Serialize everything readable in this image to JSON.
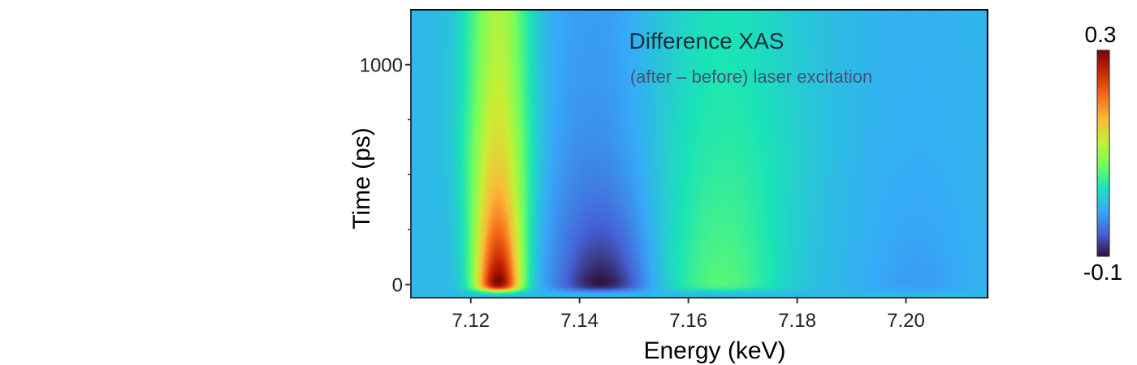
{
  "chart_data": {
    "type": "heatmap",
    "title": "Difference XAS",
    "subtitle": "(after – before) laser excitation",
    "xlabel": "Energy (keV)",
    "ylabel": "Time (ps)",
    "xlim": [
      7.109,
      7.215
    ],
    "ylim": [
      -60,
      1250
    ],
    "x_ticks": [
      7.12,
      7.14,
      7.16,
      7.18,
      7.2
    ],
    "x_tick_labels": [
      "7.12",
      "7.14",
      "7.16",
      "7.18",
      "7.20"
    ],
    "y_ticks": [
      0,
      1000
    ],
    "y_tick_labels": [
      "0",
      "1000"
    ],
    "y_minor_ticks": [
      250,
      500,
      750
    ],
    "colorbar": {
      "min": -0.1,
      "max": 0.3,
      "min_label": "-0.1",
      "max_label": "0.3",
      "colormap": "turbo",
      "stops": [
        "#30123b",
        "#4662d7",
        "#36aaf9",
        "#1ae4b6",
        "#72fe5e",
        "#c8ef34",
        "#faba39",
        "#f66b19",
        "#ca2a04",
        "#7a0403"
      ]
    },
    "background_value": 0.0,
    "features": [
      {
        "name": "pre-edge positive peak",
        "energy_keV": 7.125,
        "peak_value": 0.3,
        "peak_time_ps": 20,
        "energy_width_keV": 0.003,
        "decay_ps": 400,
        "long_time_value": 0.1
      },
      {
        "name": "edge negative dip",
        "energy_keV": 7.144,
        "peak_value": -0.1,
        "peak_time_ps": 20,
        "energy_width_keV": 0.006,
        "decay_ps": 350,
        "long_time_value": -0.02
      },
      {
        "name": "post-edge positive band",
        "energy_keV": 7.166,
        "peak_value": 0.065,
        "peak_time_ps": 20,
        "energy_width_keV": 0.008,
        "decay_ps": 900,
        "long_time_value": 0.02
      },
      {
        "name": "high-energy weak dip",
        "energy_keV": 7.202,
        "peak_value": -0.02,
        "peak_time_ps": 20,
        "energy_width_keV": 0.007,
        "decay_ps": 400,
        "long_time_value": -0.005
      }
    ]
  }
}
